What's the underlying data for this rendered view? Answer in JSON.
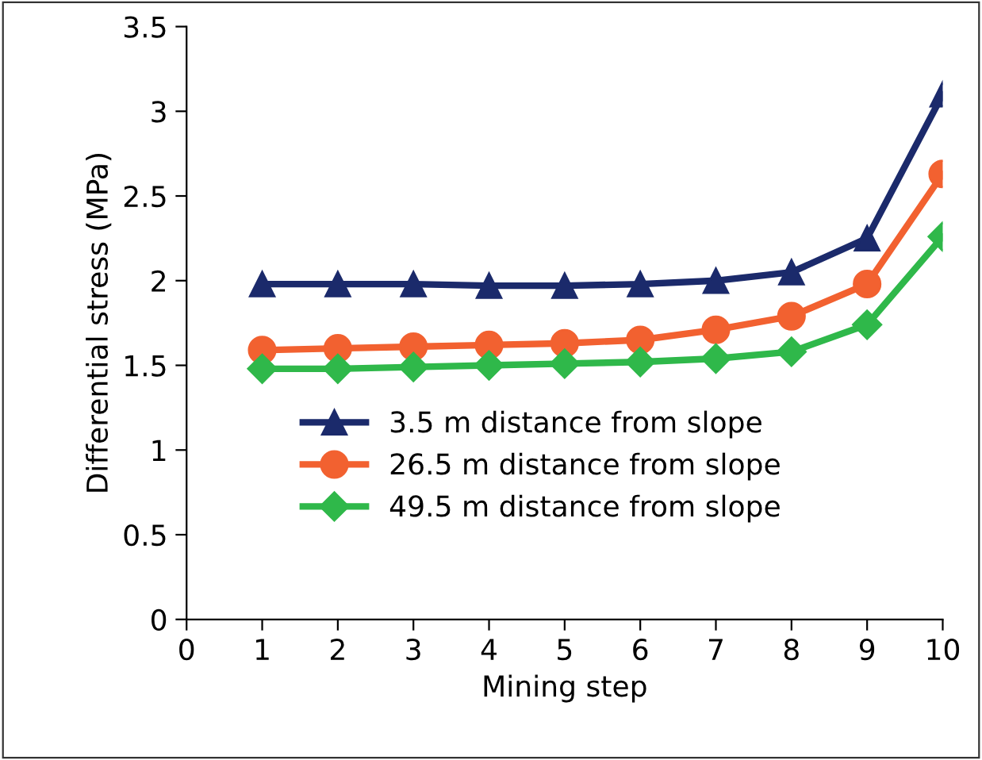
{
  "chart_data": {
    "type": "line",
    "xlabel": "Mining step",
    "ylabel": "Differential stress (MPa)",
    "x": [
      1,
      2,
      3,
      4,
      5,
      6,
      7,
      8,
      9,
      10
    ],
    "series": [
      {
        "name": "3.5 m distance from slope",
        "color": "#1b2a6b",
        "marker": "triangle",
        "values": [
          1.98,
          1.98,
          1.98,
          1.97,
          1.97,
          1.98,
          2.0,
          2.05,
          2.25,
          3.1
        ]
      },
      {
        "name": "26.5 m distance from slope",
        "color": "#f26130",
        "marker": "circle",
        "values": [
          1.59,
          1.6,
          1.61,
          1.62,
          1.63,
          1.65,
          1.71,
          1.79,
          1.98,
          2.63
        ]
      },
      {
        "name": "49.5 m distance from slope",
        "color": "#2fb84a",
        "marker": "diamond",
        "values": [
          1.48,
          1.48,
          1.49,
          1.5,
          1.51,
          1.52,
          1.54,
          1.58,
          1.74,
          2.26
        ]
      }
    ],
    "xlim": [
      0,
      10
    ],
    "xticks": [
      0,
      1,
      2,
      3,
      4,
      5,
      6,
      7,
      8,
      9,
      10
    ],
    "ylim": [
      0,
      3.5
    ],
    "yticks": [
      0,
      0.5,
      1,
      1.5,
      2,
      2.5,
      3,
      3.5
    ],
    "grid": false,
    "legend": "bottom",
    "line_style": "solid"
  }
}
